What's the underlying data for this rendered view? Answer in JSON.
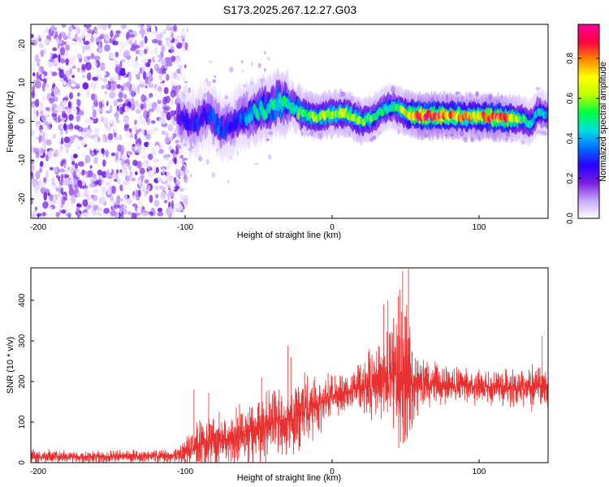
{
  "figure_title": "S173.2025.267.12.27.G03",
  "chart_data": [
    {
      "type": "heatmap",
      "name": "spectrogram",
      "xlabel": "Height of straight line (km)",
      "ylabel": "Frequency (Hz)",
      "xlim": [
        -205,
        147
      ],
      "ylim": [
        -25,
        25
      ],
      "xticks": [
        -200,
        -100,
        0,
        100
      ],
      "yticks": [
        -20,
        -10,
        0,
        10,
        20
      ],
      "colorbar": {
        "label": "Normalized spectral amplitude",
        "range": [
          0,
          0.97
        ],
        "ticks": [
          0.0,
          0.2,
          0.4,
          0.6,
          0.8
        ],
        "tick_labels": [
          "0.0",
          "0.2",
          "0.4",
          "0.6",
          "0.8"
        ],
        "colormap": [
          "#ffffff",
          "#c8a8ff",
          "#7a1fe0",
          "#2a00ff",
          "#0070ff",
          "#00e0e0",
          "#00ff40",
          "#c0ff00",
          "#ffff00",
          "#ff8800",
          "#ff0040",
          "#ff00a0"
        ]
      },
      "noise_region": [
        -205,
        -105
      ],
      "ridge": {
        "x": [
          -105,
          -95,
          -85,
          -75,
          -65,
          -55,
          -45,
          -35,
          -28,
          -20,
          -10,
          0,
          10,
          20,
          28,
          35,
          42,
          50,
          60,
          70,
          80,
          90,
          100,
          110,
          120,
          130,
          135,
          140,
          147
        ],
        "y": [
          1,
          -1,
          2,
          -2,
          0,
          2,
          3,
          5,
          4,
          2,
          1,
          2,
          2,
          0,
          1,
          3,
          4,
          2,
          1.5,
          1.5,
          1.5,
          1.2,
          1.2,
          1,
          0.8,
          0.5,
          -0.5,
          2.5,
          1.5
        ],
        "amplitude": [
          0.25,
          0.3,
          0.3,
          0.35,
          0.3,
          0.45,
          0.5,
          0.55,
          0.5,
          0.6,
          0.65,
          0.6,
          0.65,
          0.6,
          0.55,
          0.5,
          0.5,
          0.7,
          0.95,
          0.9,
          0.85,
          0.8,
          0.75,
          0.95,
          0.8,
          0.55,
          0.5,
          0.45,
          0.4
        ]
      }
    },
    {
      "type": "line",
      "name": "snr",
      "xlabel": "Height of straight line (km)",
      "ylabel": "SNR (10 * v/v)",
      "xlim": [
        -205,
        147
      ],
      "ylim": [
        0,
        480
      ],
      "xticks": [
        -200,
        -100,
        0,
        100
      ],
      "yticks": [
        0,
        100,
        200,
        300,
        400
      ],
      "color": "#e83030",
      "envelope": {
        "x": [
          -205,
          -110,
          -100,
          -90,
          -80,
          -70,
          -60,
          -50,
          -40,
          -30,
          -20,
          -10,
          0,
          10,
          20,
          30,
          40,
          45,
          50,
          55,
          60,
          70,
          80,
          90,
          100,
          110,
          120,
          130,
          140,
          147
        ],
        "base": [
          15,
          15,
          25,
          45,
          55,
          60,
          70,
          85,
          100,
          110,
          125,
          145,
          165,
          175,
          185,
          200,
          210,
          205,
          200,
          195,
          200,
          195,
          190,
          190,
          190,
          185,
          185,
          185,
          190,
          185
        ],
        "spread": [
          20,
          20,
          35,
          70,
          80,
          75,
          90,
          110,
          100,
          110,
          110,
          85,
          60,
          55,
          70,
          120,
          160,
          230,
          260,
          110,
          75,
          60,
          55,
          55,
          55,
          55,
          55,
          55,
          70,
          60
        ]
      },
      "peaks": [
        {
          "x": -94,
          "y": 180
        },
        {
          "x": -84,
          "y": 172
        },
        {
          "x": -48,
          "y": 210
        },
        {
          "x": -30,
          "y": 288
        },
        {
          "x": -28,
          "y": 260
        },
        {
          "x": 35,
          "y": 390
        },
        {
          "x": 38,
          "y": 400
        },
        {
          "x": 45,
          "y": 410
        },
        {
          "x": 48,
          "y": 472
        },
        {
          "x": 52,
          "y": 478
        },
        {
          "x": 143,
          "y": 312
        }
      ]
    }
  ]
}
